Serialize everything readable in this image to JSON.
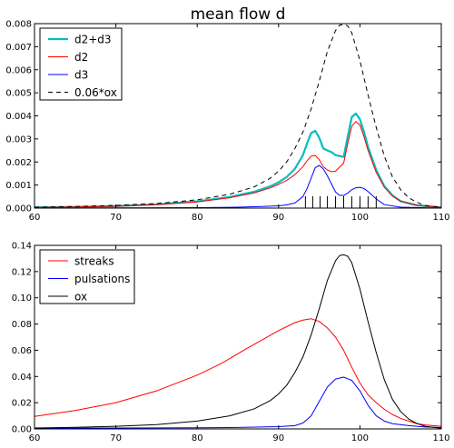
{
  "chart_data": [
    {
      "type": "line",
      "title": "mean flow d",
      "xlabel": "",
      "ylabel": "",
      "xlim": [
        60,
        110
      ],
      "ylim": [
        0,
        0.008
      ],
      "xticks": [
        60,
        70,
        80,
        90,
        100,
        110
      ],
      "xtick_labels": [
        "60",
        "70",
        "80",
        "90",
        "100",
        "110"
      ],
      "yticks": [
        0,
        0.001,
        0.002,
        0.003,
        0.004,
        0.005,
        0.006,
        0.007,
        0.008
      ],
      "ytick_labels": [
        "0.000",
        "0.001",
        "0.002",
        "0.003",
        "0.004",
        "0.005",
        "0.006",
        "0.007",
        "0.008"
      ],
      "grid": false,
      "legend_position": "top-left",
      "series": [
        {
          "name": "d2+d3",
          "color": "#00bfbf",
          "style": "solid-thick",
          "x": [
            60,
            65,
            70,
            75,
            80,
            84,
            87,
            89,
            90,
            91,
            92,
            93,
            93.5,
            94,
            94.5,
            95,
            95.5,
            96,
            96.5,
            97,
            98,
            98.5,
            99,
            99.5,
            100,
            100.5,
            101,
            102,
            103,
            104,
            105,
            107,
            110
          ],
          "y": [
            3e-05,
            5e-05,
            9e-05,
            0.00016,
            0.00029,
            0.00048,
            0.00071,
            0.00095,
            0.00112,
            0.00135,
            0.0017,
            0.0023,
            0.0028,
            0.00325,
            0.00335,
            0.00305,
            0.00258,
            0.0025,
            0.00243,
            0.0023,
            0.00222,
            0.0031,
            0.00395,
            0.0041,
            0.00385,
            0.0033,
            0.00265,
            0.00165,
            0.00095,
            0.00055,
            0.0003,
            0.00012,
            3e-05
          ]
        },
        {
          "name": "d2",
          "color": "#ff0000",
          "style": "solid",
          "x": [
            60,
            65,
            70,
            75,
            80,
            84,
            87,
            89,
            90,
            91,
            92,
            93,
            93.5,
            94,
            94.5,
            95,
            95.5,
            96,
            96.5,
            97,
            98,
            98.5,
            99,
            99.5,
            100,
            100.5,
            101,
            102,
            103,
            104,
            105,
            107,
            110
          ],
          "y": [
            3e-05,
            5e-05,
            8e-05,
            0.00015,
            0.00027,
            0.00045,
            0.00066,
            0.00088,
            0.00103,
            0.0012,
            0.00145,
            0.0018,
            0.00205,
            0.00225,
            0.00228,
            0.0021,
            0.0018,
            0.00165,
            0.00158,
            0.0016,
            0.00195,
            0.0028,
            0.00355,
            0.00375,
            0.0036,
            0.0031,
            0.0025,
            0.00155,
            0.0009,
            0.00052,
            0.0003,
            0.00012,
            3e-05
          ]
        },
        {
          "name": "d3",
          "color": "#0000ff",
          "style": "solid",
          "x": [
            60,
            70,
            80,
            85,
            88,
            90,
            91,
            92,
            93,
            93.5,
            94,
            94.5,
            95,
            95.5,
            96,
            96.5,
            97,
            97.5,
            98,
            98.5,
            99,
            99.5,
            100,
            100.5,
            101,
            102,
            103,
            105,
            110
          ],
          "y": [
            0,
            1e-05,
            2e-05,
            4e-05,
            7e-05,
            0.0001,
            0.00014,
            0.00022,
            0.0005,
            0.00085,
            0.0013,
            0.00175,
            0.00185,
            0.0017,
            0.0014,
            0.00105,
            0.0007,
            0.00055,
            0.00055,
            0.00065,
            0.0008,
            0.00088,
            0.0009,
            0.00085,
            0.00072,
            0.0004,
            0.00015,
            4e-05,
            0
          ]
        },
        {
          "name": "0.06*ox",
          "color": "#000000",
          "style": "dashed",
          "x": [
            60,
            65,
            70,
            75,
            80,
            84,
            87,
            89,
            90,
            91,
            92,
            93,
            94,
            95,
            96,
            97,
            97.5,
            98,
            98.5,
            99,
            100,
            101,
            102,
            103,
            104,
            105,
            106,
            107,
            108,
            110
          ],
          "y": [
            4e-05,
            7e-05,
            0.00012,
            0.0002,
            0.00036,
            0.0006,
            0.00092,
            0.0013,
            0.0016,
            0.002,
            0.00258,
            0.0033,
            0.0043,
            0.0055,
            0.0068,
            0.0077,
            0.00793,
            0.00797,
            0.0079,
            0.0076,
            0.0064,
            0.0049,
            0.0035,
            0.00225,
            0.00135,
            0.0008,
            0.00045,
            0.00025,
            0.00012,
            3e-05
          ]
        }
      ],
      "tick_marks_x": [
        93.3,
        94.2,
        95.1,
        96,
        97,
        98,
        99,
        100,
        101,
        102
      ]
    },
    {
      "type": "line",
      "title": "",
      "xlabel": "",
      "ylabel": "",
      "xlim": [
        60,
        110
      ],
      "ylim": [
        0,
        0.14
      ],
      "xticks": [
        60,
        70,
        80,
        90,
        100,
        110
      ],
      "xtick_labels": [
        "60",
        "70",
        "80",
        "90",
        "100",
        "110"
      ],
      "yticks": [
        0,
        0.02,
        0.04,
        0.06,
        0.08,
        0.1,
        0.12,
        0.14
      ],
      "ytick_labels": [
        "0.00",
        "0.02",
        "0.04",
        "0.06",
        "0.08",
        "0.10",
        "0.12",
        "0.14"
      ],
      "grid": false,
      "legend_position": "top-left",
      "series": [
        {
          "name": "streaks",
          "color": "#ff0000",
          "style": "solid",
          "x": [
            60,
            65,
            70,
            75,
            80,
            83,
            86,
            88,
            90,
            92,
            93,
            94,
            95,
            96,
            97,
            98,
            99,
            100,
            101,
            102,
            103,
            104,
            105,
            106,
            107,
            108,
            110
          ],
          "y": [
            0.0095,
            0.014,
            0.02,
            0.029,
            0.041,
            0.05,
            0.061,
            0.068,
            0.075,
            0.081,
            0.083,
            0.084,
            0.082,
            0.077,
            0.07,
            0.06,
            0.047,
            0.035,
            0.026,
            0.02,
            0.015,
            0.011,
            0.008,
            0.006,
            0.004,
            0.003,
            0.002
          ]
        },
        {
          "name": "pulsations",
          "color": "#0000ff",
          "style": "solid",
          "x": [
            60,
            70,
            80,
            85,
            90,
            92,
            93,
            94,
            95,
            96,
            97,
            98,
            99,
            100,
            101,
            102,
            103,
            104,
            106,
            108,
            110
          ],
          "y": [
            0.0005,
            0.0007,
            0.0009,
            0.0011,
            0.0017,
            0.0025,
            0.0045,
            0.01,
            0.021,
            0.032,
            0.038,
            0.0395,
            0.037,
            0.029,
            0.018,
            0.01,
            0.006,
            0.004,
            0.0025,
            0.0015,
            0.001
          ]
        },
        {
          "name": "ox",
          "color": "#000000",
          "style": "solid",
          "x": [
            60,
            65,
            70,
            75,
            80,
            84,
            87,
            89,
            90,
            91,
            92,
            93,
            94,
            95,
            96,
            97,
            97.5,
            98,
            98.5,
            99,
            100,
            101,
            102,
            103,
            104,
            105,
            106,
            107,
            108,
            110
          ],
          "y": [
            0.0007,
            0.0012,
            0.002,
            0.0033,
            0.006,
            0.01,
            0.0153,
            0.0217,
            0.0267,
            0.0333,
            0.043,
            0.055,
            0.0717,
            0.0917,
            0.1133,
            0.1283,
            0.1322,
            0.1328,
            0.1317,
            0.1267,
            0.1067,
            0.0817,
            0.0583,
            0.0375,
            0.0225,
            0.0133,
            0.0075,
            0.0042,
            0.002,
            0.0005
          ]
        }
      ]
    }
  ]
}
